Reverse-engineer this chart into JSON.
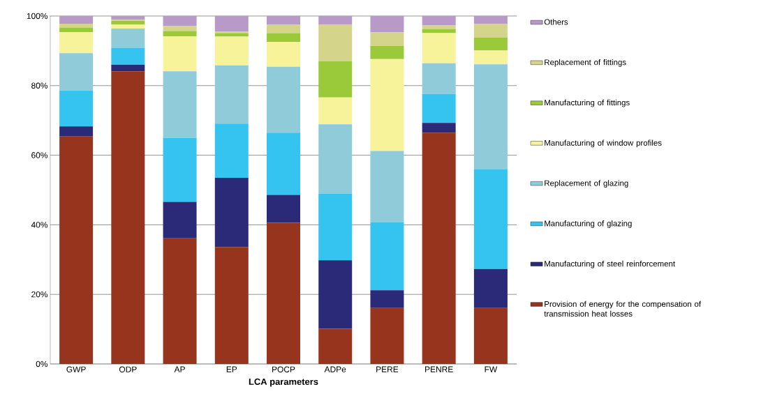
{
  "chart_data": {
    "type": "bar",
    "stacked": true,
    "xlabel": "LCA parameters",
    "categories": [
      "GWP",
      "ODP",
      "AP",
      "EP",
      "POCP",
      "ADPe",
      "PERE",
      "PENRE",
      "FW"
    ],
    "series": [
      {
        "name": "Provision of energy for the compensation of transmission heat losses",
        "color": "#96341e",
        "values": [
          65.4,
          84.1,
          36.1,
          33.6,
          40.6,
          10.1,
          16.1,
          66.5,
          16.1
        ]
      },
      {
        "name": "Manufacturing of steel reinforcement",
        "color": "#2a2a78",
        "values": [
          2.9,
          1.9,
          10.5,
          19.9,
          8.0,
          19.7,
          5.1,
          2.8,
          11.2
        ]
      },
      {
        "name": "Manufacturing of glazing",
        "color": "#35c4f0",
        "values": [
          10.3,
          4.9,
          18.4,
          15.6,
          17.9,
          19.2,
          19.6,
          8.3,
          28.7
        ]
      },
      {
        "name": "Replacement of glazing",
        "color": "#8fcbd8",
        "values": [
          10.7,
          5.5,
          19.1,
          16.7,
          18.9,
          19.9,
          20.4,
          8.8,
          30.1
        ]
      },
      {
        "name": "Manufacturing of window profiles",
        "color": "#f7f39a",
        "values": [
          6.1,
          1.2,
          10.1,
          8.3,
          7.2,
          7.7,
          26.4,
          8.7,
          4.0
        ]
      },
      {
        "name": "Manufacturing of fittings",
        "color": "#9ac93a",
        "values": [
          1.3,
          1.0,
          1.5,
          1.0,
          2.5,
          10.4,
          3.8,
          1.2,
          3.7
        ]
      },
      {
        "name": "Replacement of fittings",
        "color": "#d4d48a",
        "values": [
          1.1,
          0.3,
          1.4,
          0.4,
          2.4,
          10.5,
          3.9,
          1.0,
          3.9
        ]
      },
      {
        "name": "Others",
        "color": "#b79ac8",
        "values": [
          2.2,
          1.1,
          2.9,
          4.5,
          2.5,
          2.5,
          4.7,
          2.7,
          2.3
        ]
      }
    ],
    "ylim": [
      0,
      100
    ],
    "yticks": [
      {
        "value": 0,
        "label": "0%"
      },
      {
        "value": 20,
        "label": "20%"
      },
      {
        "value": 40,
        "label": "40%"
      },
      {
        "value": 60,
        "label": "60%"
      },
      {
        "value": 80,
        "label": "80%"
      },
      {
        "value": 100,
        "label": "100%"
      }
    ],
    "grid": "y",
    "legend": "right"
  }
}
